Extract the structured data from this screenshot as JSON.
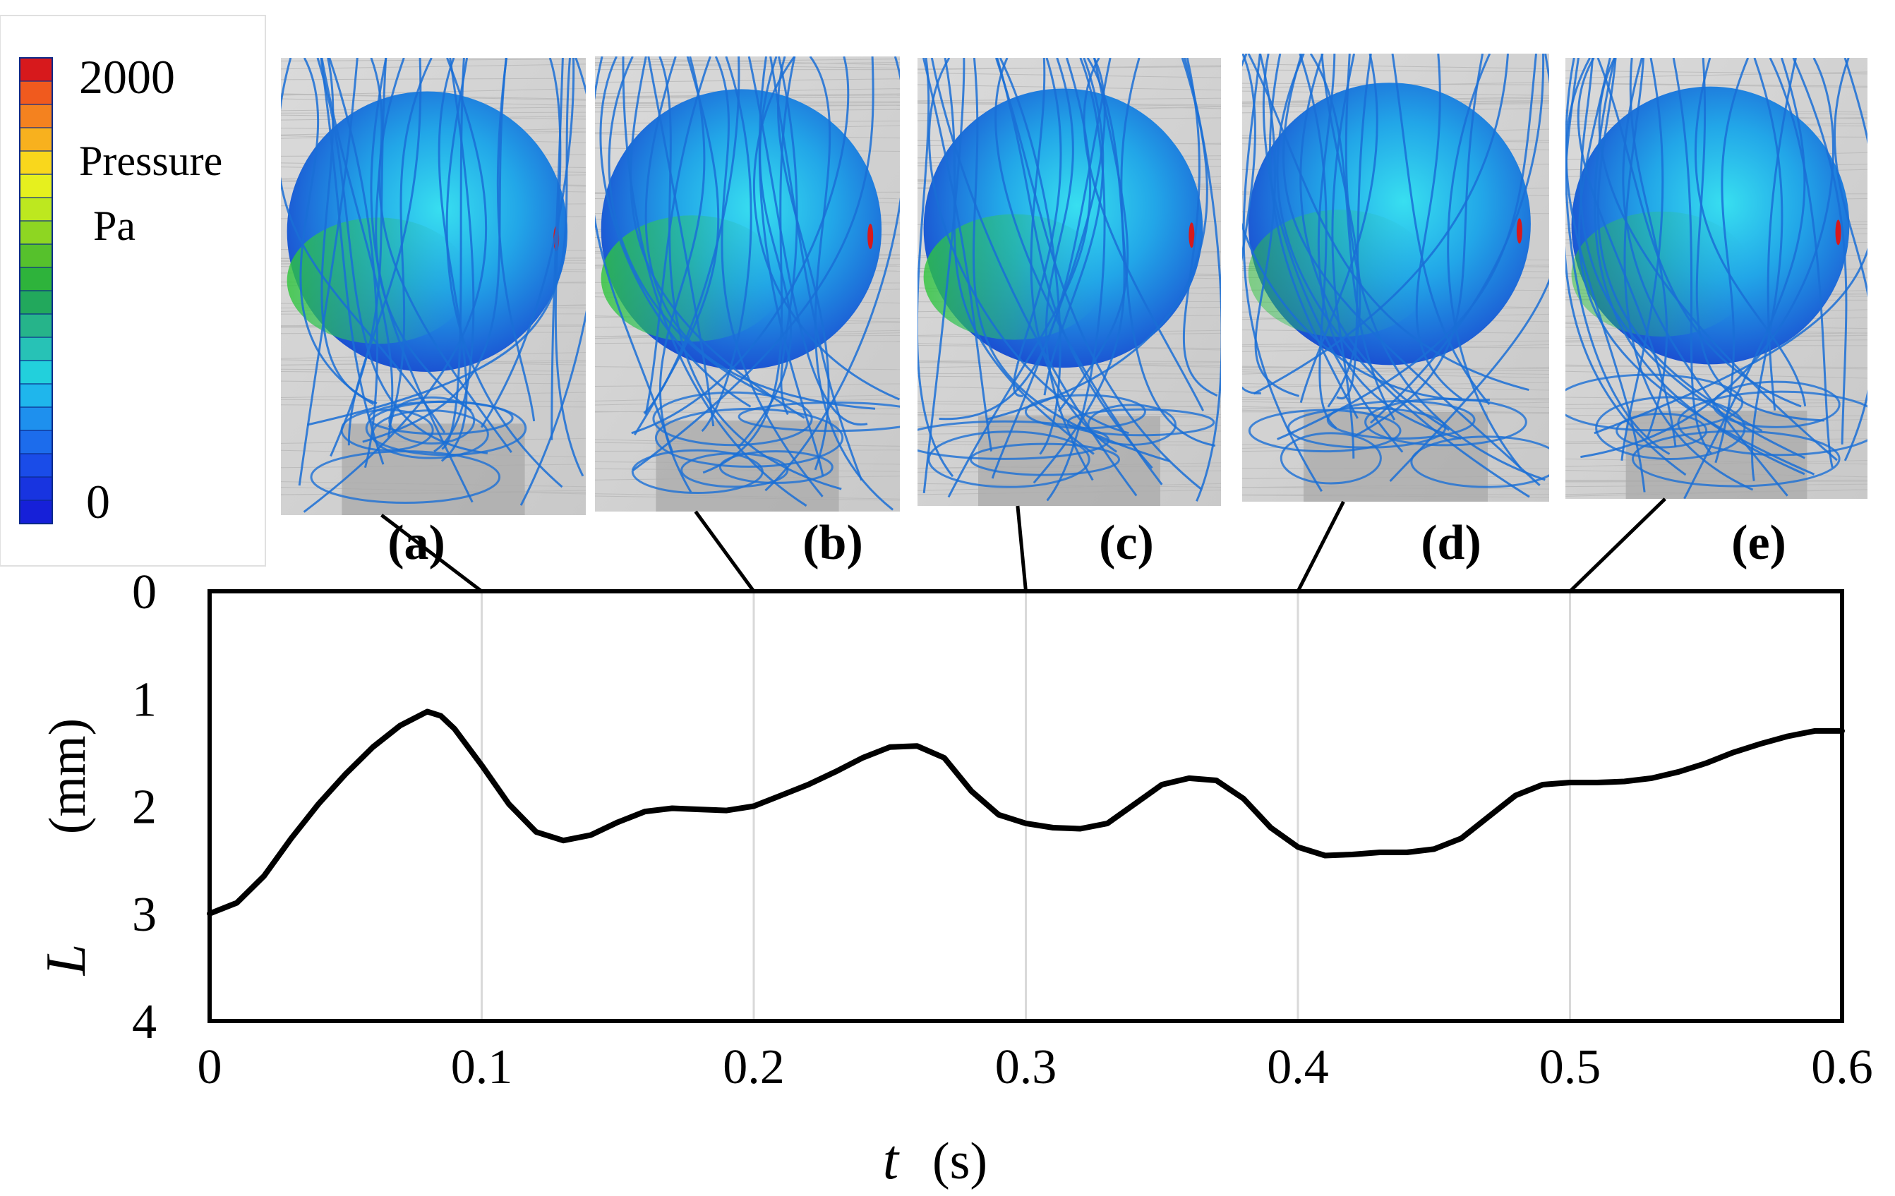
{
  "colorbar": {
    "max_label": "2000",
    "min_label": "0",
    "quantity": "Pressure",
    "unit": "Pa",
    "colors": [
      "#d7191c",
      "#f05a1e",
      "#f4821f",
      "#f8b11e",
      "#f9d71c",
      "#e6f01e",
      "#bde81f",
      "#8ed622",
      "#56c12c",
      "#2eb33b",
      "#22a85c",
      "#26b48a",
      "#27c2b6",
      "#22d0dc",
      "#1fb6ec",
      "#1e90ee",
      "#1c6cec",
      "#1a4ce8",
      "#1834e0",
      "#1620d8"
    ]
  },
  "colors": {
    "streamline": "#1a6fd6",
    "sphere_light": "#35d8ee",
    "sphere_green": "#2ec53a",
    "sphere_dark": "#1a4bd2",
    "mesh": "#d0d0d0",
    "line": "#000000",
    "grid": "#d9d9d9"
  },
  "snapshots": [
    {
      "label": "(a)",
      "letter": "a",
      "t": 0.1
    },
    {
      "label": "(b)",
      "letter": "b",
      "t": 0.2
    },
    {
      "label": "(c)",
      "letter": "c",
      "t": 0.3
    },
    {
      "label": "(d)",
      "letter": "d",
      "t": 0.4
    },
    {
      "label": "(e)",
      "letter": "e",
      "t": 0.5
    }
  ],
  "chart_data": {
    "type": "line",
    "title": "",
    "xlabel_var": "t",
    "xlabel_unit": "(s)",
    "ylabel_var": "L",
    "ylabel_unit": "(mm)",
    "xlim": [
      0,
      0.6
    ],
    "ylim": [
      0,
      4
    ],
    "y_inverted": true,
    "x_ticks": [
      "0",
      "0.1",
      "0.2",
      "0.3",
      "0.4",
      "0.5",
      "0.6"
    ],
    "x_tick_values": [
      0,
      0.1,
      0.2,
      0.3,
      0.4,
      0.5,
      0.6
    ],
    "y_ticks": [
      "0",
      "1",
      "2",
      "3",
      "4"
    ],
    "y_tick_values": [
      0,
      1,
      2,
      3,
      4
    ],
    "vertical_grid": true,
    "series": [
      {
        "name": "L",
        "x": [
          0,
          0.01,
          0.02,
          0.03,
          0.04,
          0.05,
          0.06,
          0.07,
          0.08,
          0.085,
          0.09,
          0.1,
          0.11,
          0.12,
          0.13,
          0.14,
          0.15,
          0.16,
          0.17,
          0.18,
          0.19,
          0.2,
          0.21,
          0.22,
          0.23,
          0.24,
          0.25,
          0.26,
          0.27,
          0.28,
          0.29,
          0.3,
          0.31,
          0.32,
          0.33,
          0.34,
          0.35,
          0.36,
          0.37,
          0.38,
          0.39,
          0.4,
          0.41,
          0.42,
          0.43,
          0.44,
          0.45,
          0.46,
          0.47,
          0.48,
          0.49,
          0.5,
          0.51,
          0.52,
          0.53,
          0.54,
          0.55,
          0.56,
          0.57,
          0.58,
          0.59,
          0.6
        ],
        "y": [
          3.0,
          2.9,
          2.65,
          2.3,
          1.98,
          1.7,
          1.45,
          1.25,
          1.12,
          1.16,
          1.28,
          1.62,
          1.98,
          2.24,
          2.32,
          2.27,
          2.15,
          2.05,
          2.02,
          2.03,
          2.04,
          2.0,
          1.9,
          1.8,
          1.68,
          1.55,
          1.45,
          1.44,
          1.55,
          1.86,
          2.08,
          2.16,
          2.2,
          2.21,
          2.16,
          1.98,
          1.8,
          1.74,
          1.76,
          1.93,
          2.2,
          2.38,
          2.46,
          2.45,
          2.43,
          2.43,
          2.4,
          2.3,
          2.1,
          1.9,
          1.8,
          1.78,
          1.78,
          1.77,
          1.74,
          1.68,
          1.6,
          1.5,
          1.42,
          1.35,
          1.3,
          1.3
        ]
      }
    ]
  }
}
